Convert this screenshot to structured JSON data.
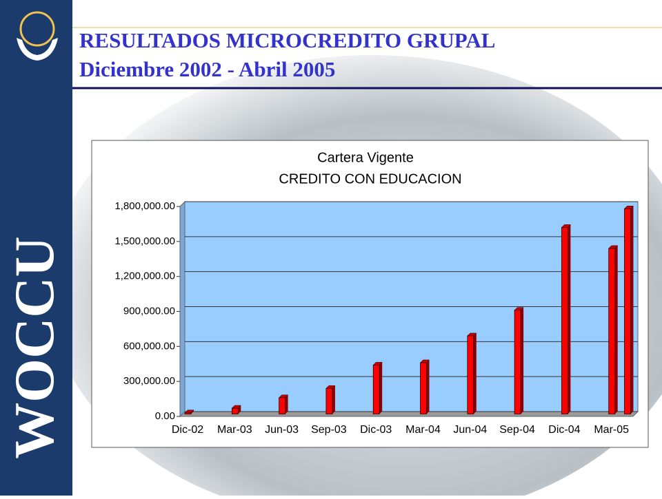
{
  "header": {
    "title": "RESULTADOS MICROCREDITO GRUPAL",
    "subtitle": "Diciembre 2002 - Abril 2005",
    "side_text": "WOCCU"
  },
  "chart_data": {
    "type": "bar",
    "title": "Cartera Vigente",
    "subtitle": "CREDITO CON EDUCACION",
    "categories": [
      "Dic-02",
      "Mar-03",
      "Jun-03",
      "Sep-03",
      "Dic-03",
      "Mar-04",
      "Jun-04",
      "Sep-04",
      "Dic-04",
      "Mar-05",
      null
    ],
    "values": [
      10000,
      50000,
      140000,
      220000,
      420000,
      440000,
      670000,
      890000,
      1600000,
      1420000,
      1760000
    ],
    "color": "#ff0000",
    "background": "#99ccff",
    "ylim": [
      0,
      1800000
    ],
    "yticks": [
      {
        "value": 0,
        "label": "0.00"
      },
      {
        "value": 300000,
        "label": "300,000.00"
      },
      {
        "value": 600000,
        "label": "600,000.00"
      },
      {
        "value": 900000,
        "label": "900,000.00"
      },
      {
        "value": 1200000,
        "label": "1,200,000.00"
      },
      {
        "value": 1500000,
        "label": "1,500,000.00"
      },
      {
        "value": 1800000,
        "label": "1,800,000.00"
      }
    ],
    "grid": true
  }
}
